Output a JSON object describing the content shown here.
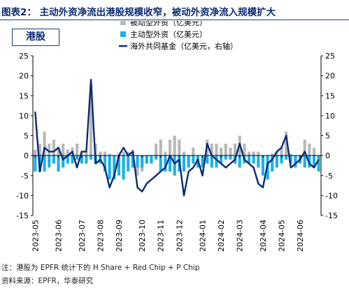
{
  "title": "图表2：  主动外资净流出港股规模收窄，被动外资净流入规模扩大",
  "market_label": "港股",
  "notes": [
    "注：港股为 EPFR 统计下的 H Share + Red Chip + P Chip",
    "资料来源：EPFR，华泰研究"
  ],
  "colors": {
    "passive": "#b8b8b8",
    "active": "#1ab0e8",
    "total": "#0b2a72",
    "title": "#0b2a72"
  },
  "chart_data": {
    "type": "bar",
    "legend": [
      "被动型外资（亿美元）",
      "主动型外资（亿美元）",
      "海外共同基金（亿美元，右轴）"
    ],
    "legend_position": "top-right",
    "yticks_left": [
      "25",
      "20",
      "15",
      "10",
      "5",
      "0",
      "-5",
      "-10",
      "-15"
    ],
    "yticks_right": [
      "25",
      "20",
      "15",
      "10",
      "5",
      "0",
      "-5",
      "-10",
      "-15"
    ],
    "ylim": [
      -15,
      25
    ],
    "grid": false,
    "x_labels": [
      "2023-05",
      "2023-06",
      "2023-07",
      "2023-08",
      "2023-09",
      "2023-10",
      "2023-11",
      "2023-12",
      "2024-01",
      "2024-02",
      "2024-03",
      "2024-04",
      "2024-05",
      "2024-06"
    ],
    "x_label_index": [
      0,
      5,
      10,
      14,
      18,
      23,
      27,
      31,
      36,
      40,
      44,
      49,
      53,
      57
    ],
    "series": [
      {
        "name": "被动型外资（亿美元）",
        "type": "bar",
        "values": [
          1.5,
          3,
          6,
          3,
          4,
          2,
          3,
          1.5,
          2,
          3,
          1,
          1,
          18,
          3,
          1,
          1,
          0.5,
          -1,
          -1,
          1,
          1,
          1.5,
          -5,
          -4,
          -2,
          -1,
          3,
          4,
          1,
          4,
          5,
          4,
          1,
          -2,
          2,
          -1,
          -1,
          4,
          3,
          3,
          2,
          3,
          2,
          3,
          5,
          3,
          1,
          1,
          1,
          -2,
          -1,
          0.5,
          1,
          2,
          6,
          0.5,
          -1,
          -0.5,
          4,
          3,
          2,
          -1
        ]
      },
      {
        "name": "主动型外资（亿美元）",
        "type": "bar",
        "values": [
          -4,
          -4,
          -4,
          -3,
          -2,
          -4,
          -3,
          -2,
          -2,
          -1,
          -2,
          -2,
          -1,
          -2,
          -2,
          -4,
          -6,
          -6,
          -5,
          -6,
          -4,
          -3,
          -3,
          -3,
          -2,
          -2,
          -1,
          -4,
          -4,
          -4,
          -5,
          -4,
          -4,
          -3,
          -2,
          -3,
          -3,
          -2,
          -3,
          -3,
          -2,
          -1,
          -1,
          -2,
          -3,
          -2,
          -2,
          -2,
          -3,
          -5,
          -6,
          -4,
          -3,
          -2,
          -1,
          -2,
          -3,
          -2,
          -3,
          -3,
          -3,
          -4
        ]
      },
      {
        "name": "海外共同基金（亿美元，右轴）",
        "type": "line",
        "values": [
          11,
          -4,
          2,
          1,
          1,
          2,
          -1,
          0,
          1,
          -3,
          1,
          1,
          19,
          -2,
          -1,
          -3,
          -8,
          -5,
          0,
          2,
          0,
          1,
          -8,
          -9,
          -7,
          -6,
          -5,
          -4,
          -3,
          0,
          -2,
          -1,
          -10,
          -4,
          -3,
          -1,
          -5,
          3,
          0,
          -1,
          -2,
          -3,
          -2,
          -1,
          3,
          -1,
          -2,
          -3,
          -7,
          -8,
          -2,
          -1,
          1,
          2,
          5,
          -3,
          -2,
          -1,
          1,
          -2,
          -3,
          -1
        ]
      }
    ]
  }
}
